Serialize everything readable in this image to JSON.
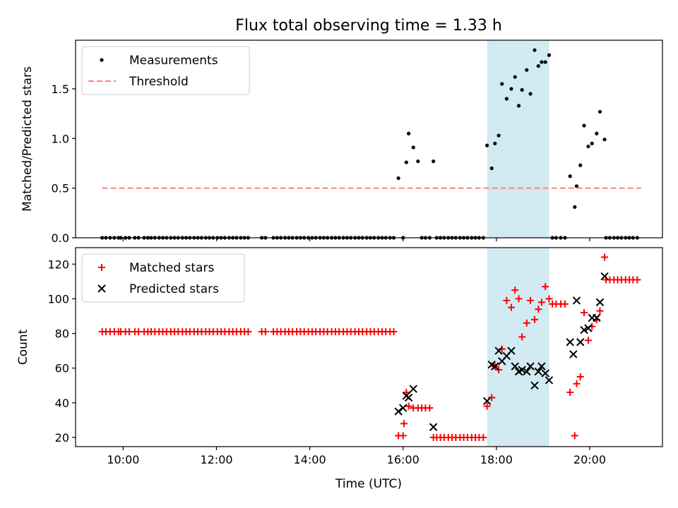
{
  "chart_data": {
    "type": "scatter",
    "title": "Flux total observing time = 1.33 h",
    "xlabel": "Time (UTC)",
    "x_ticks": [
      {
        "label": "10:00",
        "value": 10.0
      },
      {
        "label": "12:00",
        "value": 12.0
      },
      {
        "label": "14:00",
        "value": 14.0
      },
      {
        "label": "16:00",
        "value": 16.0
      },
      {
        "label": "18:00",
        "value": 18.0
      },
      {
        "label": "20:00",
        "value": 20.0
      }
    ],
    "xlim": [
      8.98,
      21.56
    ],
    "highlight_span": [
      17.8,
      19.13
    ],
    "highlight_color": "#add8e6",
    "subplots": [
      {
        "ylabel": "Matched/Predicted stars",
        "ylim": [
          0,
          1.99
        ],
        "y_ticks": [
          {
            "label": "0.0",
            "value": 0.0
          },
          {
            "label": "0.5",
            "value": 0.5
          },
          {
            "label": "1.0",
            "value": 1.0
          },
          {
            "label": "1.5",
            "value": 1.5
          }
        ],
        "legend_position": "upper left",
        "series": [
          {
            "name": "Measurements",
            "kind": "dot",
            "color": "#000000",
            "x": [
              9.55,
              9.63,
              9.72,
              9.81,
              9.9,
              9.95,
              10.05,
              10.13,
              10.25,
              10.33,
              10.45,
              10.53,
              10.6,
              10.68,
              10.77,
              10.85,
              10.93,
              11.02,
              11.1,
              11.18,
              11.27,
              11.35,
              11.43,
              11.52,
              11.6,
              11.68,
              11.77,
              11.85,
              11.93,
              12.02,
              12.1,
              12.18,
              12.27,
              12.35,
              12.43,
              12.52,
              12.6,
              12.68,
              12.97,
              13.05,
              13.22,
              13.3,
              13.38,
              13.47,
              13.55,
              13.63,
              13.72,
              13.8,
              13.88,
              13.97,
              14.05,
              14.13,
              14.22,
              14.3,
              14.38,
              14.47,
              14.55,
              14.63,
              14.72,
              14.8,
              14.88,
              14.97,
              15.05,
              15.13,
              15.22,
              15.3,
              15.38,
              15.47,
              15.55,
              15.63,
              15.72,
              15.8,
              16.0,
              16.4,
              16.48,
              16.57,
              16.72,
              16.8,
              16.88,
              16.97,
              17.05,
              17.13,
              17.22,
              17.3,
              17.38,
              17.47,
              17.55,
              17.63,
              17.72,
              19.2,
              19.28,
              19.38,
              19.47,
              20.35,
              20.43,
              20.52,
              20.6,
              20.68,
              20.77,
              20.85,
              20.93,
              21.02,
              15.9,
              16.07,
              16.12,
              16.22,
              16.32,
              16.65,
              17.8,
              17.9,
              17.97,
              18.05,
              18.12,
              18.22,
              18.32,
              18.4,
              18.48,
              18.55,
              18.65,
              18.73,
              18.82,
              18.9,
              18.97,
              19.05,
              19.13,
              19.58,
              19.68,
              19.72,
              19.8,
              19.88,
              19.97,
              20.05,
              20.15,
              20.22,
              20.32
            ],
            "y": [
              0,
              0,
              0,
              0,
              0,
              0,
              0,
              0,
              0,
              0,
              0,
              0,
              0,
              0,
              0,
              0,
              0,
              0,
              0,
              0,
              0,
              0,
              0,
              0,
              0,
              0,
              0,
              0,
              0,
              0,
              0,
              0,
              0,
              0,
              0,
              0,
              0,
              0,
              0,
              0,
              0,
              0,
              0,
              0,
              0,
              0,
              0,
              0,
              0,
              0,
              0,
              0,
              0,
              0,
              0,
              0,
              0,
              0,
              0,
              0,
              0,
              0,
              0,
              0,
              0,
              0,
              0,
              0,
              0,
              0,
              0,
              0,
              0,
              0,
              0,
              0,
              0,
              0,
              0,
              0,
              0,
              0,
              0,
              0,
              0,
              0,
              0,
              0,
              0,
              0,
              0,
              0,
              0,
              0,
              0,
              0,
              0,
              0,
              0,
              0,
              0,
              0,
              0.6,
              0.76,
              1.05,
              0.91,
              0.77,
              0.77,
              0.93,
              0.7,
              0.95,
              1.03,
              1.55,
              1.4,
              1.5,
              1.62,
              1.33,
              1.49,
              1.69,
              1.45,
              1.89,
              1.73,
              1.77,
              1.77,
              1.84,
              0.62,
              0.31,
              0.52,
              0.73,
              1.13,
              0.92,
              0.95,
              1.05,
              1.27,
              0.99
            ]
          },
          {
            "name": "Threshold",
            "kind": "dashed-line",
            "color": "#ff7f7f",
            "x": [
              9.55,
              21.1
            ],
            "y": [
              0.5,
              0.5
            ]
          }
        ]
      },
      {
        "ylabel": "Count",
        "ylim": [
          14.7,
          129.5
        ],
        "y_ticks": [
          {
            "label": "20",
            "value": 20
          },
          {
            "label": "40",
            "value": 40
          },
          {
            "label": "60",
            "value": 60
          },
          {
            "label": "80",
            "value": 80
          },
          {
            "label": "100",
            "value": 100
          },
          {
            "label": "120",
            "value": 120
          }
        ],
        "legend_position": "upper left",
        "series": [
          {
            "name": "Matched stars",
            "kind": "plus",
            "color": "#ff0000",
            "x": [
              9.55,
              9.63,
              9.72,
              9.81,
              9.9,
              9.95,
              10.05,
              10.13,
              10.25,
              10.33,
              10.45,
              10.53,
              10.6,
              10.68,
              10.77,
              10.85,
              10.93,
              11.02,
              11.1,
              11.18,
              11.27,
              11.35,
              11.43,
              11.52,
              11.6,
              11.68,
              11.77,
              11.85,
              11.93,
              12.02,
              12.1,
              12.18,
              12.27,
              12.35,
              12.43,
              12.52,
              12.6,
              12.68,
              12.97,
              13.05,
              13.22,
              13.3,
              13.38,
              13.47,
              13.55,
              13.63,
              13.72,
              13.8,
              13.88,
              13.97,
              14.05,
              14.13,
              14.22,
              14.3,
              14.38,
              14.47,
              14.55,
              14.63,
              14.72,
              14.8,
              14.88,
              14.97,
              15.05,
              15.13,
              15.22,
              15.3,
              15.38,
              15.47,
              15.55,
              15.63,
              15.72,
              15.8,
              15.9,
              16.0,
              16.07,
              16.12,
              16.22,
              16.32,
              16.4,
              16.48,
              16.57,
              16.65,
              16.72,
              16.8,
              16.88,
              16.97,
              17.05,
              17.13,
              17.22,
              17.3,
              17.38,
              17.47,
              17.55,
              17.63,
              17.72,
              17.8,
              17.9,
              17.97,
              18.05,
              18.12,
              18.22,
              18.32,
              18.4,
              18.48,
              18.55,
              18.65,
              18.73,
              18.82,
              18.9,
              18.97,
              19.05,
              19.13,
              19.2,
              19.28,
              19.38,
              19.47,
              19.58,
              19.68,
              19.72,
              19.8,
              19.88,
              19.97,
              20.05,
              20.15,
              20.22,
              20.32,
              20.35,
              20.43,
              20.52,
              20.6,
              20.68,
              20.77,
              20.85,
              20.93,
              21.02,
              16.02
            ],
            "y": [
              81,
              81,
              81,
              81,
              81,
              81,
              81,
              81,
              81,
              81,
              81,
              81,
              81,
              81,
              81,
              81,
              81,
              81,
              81,
              81,
              81,
              81,
              81,
              81,
              81,
              81,
              81,
              81,
              81,
              81,
              81,
              81,
              81,
              81,
              81,
              81,
              81,
              81,
              81,
              81,
              81,
              81,
              81,
              81,
              81,
              81,
              81,
              81,
              81,
              81,
              81,
              81,
              81,
              81,
              81,
              81,
              81,
              81,
              81,
              81,
              81,
              81,
              81,
              81,
              81,
              81,
              81,
              81,
              81,
              81,
              81,
              81,
              21,
              21,
              46,
              38,
              37,
              37,
              37,
              37,
              37,
              20,
              20,
              20,
              20,
              20,
              20,
              20,
              20,
              20,
              20,
              20,
              20,
              20,
              20,
              38,
              43,
              61,
              59,
              71,
              99,
              95,
              105,
              100,
              78,
              86,
              99,
              88,
              94,
              98,
              107,
              100,
              97,
              97,
              97,
              97,
              46,
              21,
              51,
              55,
              92,
              76,
              84,
              88,
              93,
              124,
              111,
              111,
              111,
              111,
              111,
              111,
              111,
              111,
              111,
              28
            ]
          },
          {
            "name": "Predicted stars",
            "kind": "cross",
            "color": "#000000",
            "x": [
              15.9,
              16.0,
              16.07,
              16.12,
              16.22,
              16.65,
              17.8,
              17.9,
              17.97,
              18.05,
              18.12,
              18.22,
              18.32,
              18.4,
              18.48,
              18.55,
              18.65,
              18.73,
              18.82,
              18.9,
              18.97,
              19.05,
              19.13,
              19.58,
              19.65,
              19.72,
              19.8,
              19.88,
              19.97,
              20.05,
              20.15,
              20.22,
              20.32
            ],
            "y": [
              35,
              37,
              44,
              43,
              48,
              26,
              41,
              62,
              61,
              70,
              64,
              67,
              70,
              61,
              58,
              59,
              58,
              61,
              50,
              58,
              61,
              57,
              53,
              75,
              68,
              99,
              75,
              82,
              83,
              89,
              89,
              98,
              113
            ]
          }
        ]
      }
    ]
  }
}
